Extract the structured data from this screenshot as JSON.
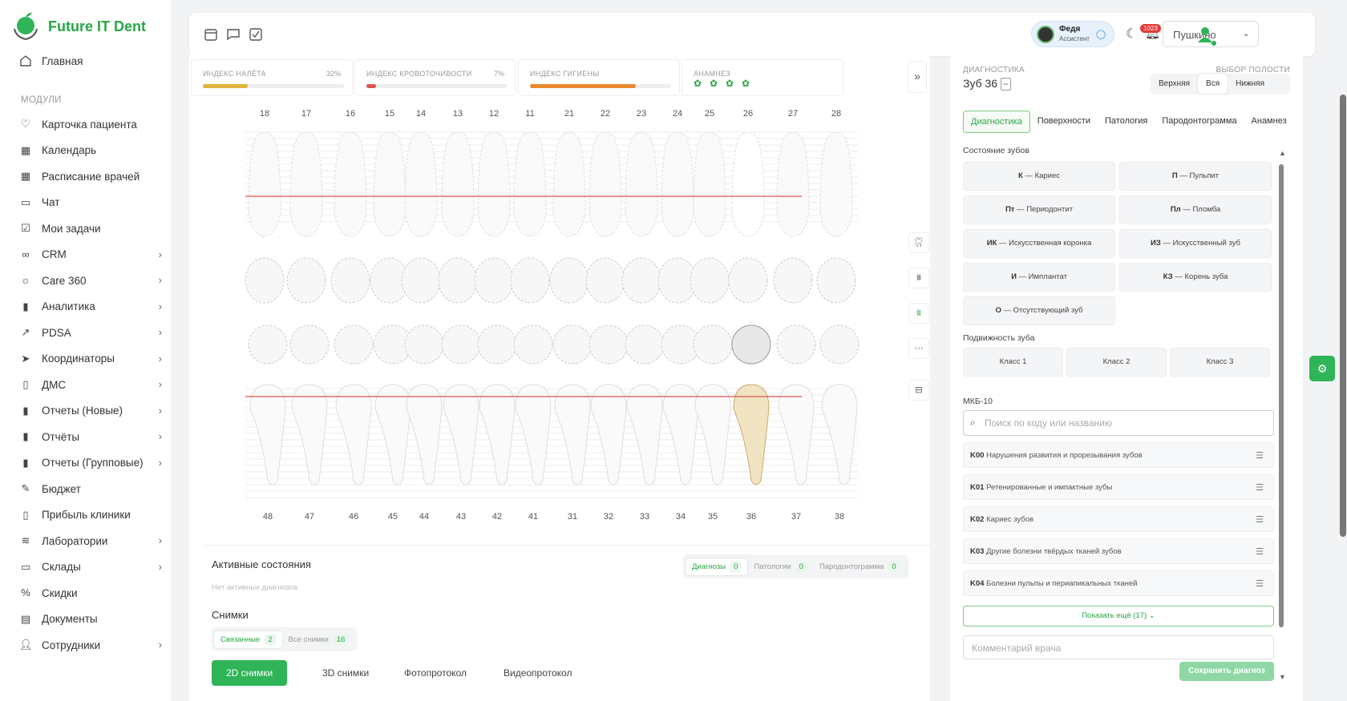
{
  "app": {
    "name": "Future IT Dent"
  },
  "sidebar": {
    "home": "Главная",
    "section": "МОДУЛИ",
    "items": [
      {
        "label": "Карточка пациента",
        "icon": "heart-icon",
        "chev": false
      },
      {
        "label": "Календарь",
        "icon": "calendar-icon",
        "chev": false
      },
      {
        "label": "Расписание врачей",
        "icon": "calendar-icon",
        "chev": false
      },
      {
        "label": "Чат",
        "icon": "chat-icon",
        "chev": false
      },
      {
        "label": "Мои задачи",
        "icon": "checkbox-icon",
        "chev": false
      },
      {
        "label": "CRM",
        "icon": "infinity-icon",
        "chev": true
      },
      {
        "label": "Care 360",
        "icon": "sun-icon",
        "chev": true
      },
      {
        "label": "Аналитика",
        "icon": "bar-chart-icon",
        "chev": true
      },
      {
        "label": "PDSA",
        "icon": "trend-icon",
        "chev": true
      },
      {
        "label": "Координаторы",
        "icon": "send-icon",
        "chev": true
      },
      {
        "label": "ДМС",
        "icon": "clipboard-icon",
        "chev": true
      },
      {
        "label": "Отчеты (Новые)",
        "icon": "bar-chart-icon",
        "chev": true
      },
      {
        "label": "Отчёты",
        "icon": "bar-chart-icon",
        "chev": true
      },
      {
        "label": "Отчеты (Групповые)",
        "icon": "bar-chart-icon",
        "chev": true
      },
      {
        "label": "Бюджет",
        "icon": "pen-icon",
        "chev": false
      },
      {
        "label": "Прибыль клиники",
        "icon": "clipboard-icon",
        "chev": false
      },
      {
        "label": "Лаборатории",
        "icon": "layers-icon",
        "chev": true
      },
      {
        "label": "Склады",
        "icon": "folder-icon",
        "chev": true
      },
      {
        "label": "Скидки",
        "icon": "percent-icon",
        "chev": false
      },
      {
        "label": "Документы",
        "icon": "document-icon",
        "chev": false
      },
      {
        "label": "Сотрудники",
        "icon": "users-icon",
        "chev": true
      }
    ]
  },
  "topbar": {
    "user_name": "Федя",
    "user_role": "Ассистент",
    "notifications": "1023",
    "clinic": "Пушкино"
  },
  "indices": [
    {
      "label": "ИНДЕКС НАЛЁТА",
      "pct": "32%",
      "value": 32,
      "color": "#e0b43c"
    },
    {
      "label": "ИНДЕКС КРОВОТОЧИВОСТИ",
      "pct": "7%",
      "value": 7,
      "color": "#d9534f"
    },
    {
      "label": "ИНДЕКС ГИГИЕНЫ",
      "pct": "",
      "value": 75,
      "color": "#e8892d"
    },
    {
      "label": "АНАМНЕЗ",
      "pct": "",
      "value": 0,
      "color": "#28a745"
    }
  ],
  "upper_numbers": [
    "18",
    "17",
    "16",
    "15",
    "14",
    "13",
    "12",
    "11",
    "21",
    "22",
    "23",
    "24",
    "25",
    "26",
    "27",
    "28"
  ],
  "lower_numbers": [
    "48",
    "47",
    "46",
    "45",
    "44",
    "43",
    "42",
    "41",
    "31",
    "32",
    "33",
    "34",
    "35",
    "36",
    "37",
    "38"
  ],
  "active": {
    "title": "Активные состояния",
    "empty": "Нет активных диагнозов",
    "tabs": [
      {
        "label": "Диагнозы",
        "count": "0"
      },
      {
        "label": "Патологии",
        "count": "0"
      },
      {
        "label": "Пародонтограмма",
        "count": "0"
      }
    ]
  },
  "snaps": {
    "title": "Снимки",
    "filters": [
      {
        "label": "Связанные",
        "count": "2"
      },
      {
        "label": "Все снимки",
        "count": "16"
      }
    ],
    "types": [
      "2D снимки",
      "3D снимки",
      "Фотопротокол",
      "Видеопротокол"
    ]
  },
  "right": {
    "diag_label": "ДИАГНОСТИКА",
    "tooth": "Зуб 36",
    "jaw_label": "ВЫБОР ПОЛОСТИ",
    "jaw": [
      "Верхняя",
      "Вся",
      "Нижняя"
    ],
    "tabs": [
      "Диагностика",
      "Поверхности",
      "Патология",
      "Пародонтограмма",
      "Анамнез"
    ],
    "state_title": "Состояние зубов",
    "states": [
      {
        "code": "К",
        "label": "Кариес"
      },
      {
        "code": "П",
        "label": "Пульпит"
      },
      {
        "code": "Пт",
        "label": "Периодонтит"
      },
      {
        "code": "Пл",
        "label": "Пломба"
      },
      {
        "code": "ИК",
        "label": "Искусственная коронка"
      },
      {
        "code": "ИЗ",
        "label": "Искусственный зуб"
      },
      {
        "code": "И",
        "label": "Имплантат"
      },
      {
        "code": "КЗ",
        "label": "Корень зуба"
      },
      {
        "code": "О",
        "label": "Отсутствующий зуб"
      }
    ],
    "mobility_title": "Подвижность зуба",
    "mobility": [
      "Класс 1",
      "Класс 2",
      "Класс 3"
    ],
    "mkb_title": "МКБ-10",
    "mkb_placeholder": "Поиск по коду или названию",
    "mkb": [
      {
        "code": "K00",
        "label": "Нарушения развития и прорезывания зубов"
      },
      {
        "code": "K01",
        "label": "Ретенированные и импактные зубы"
      },
      {
        "code": "K02",
        "label": "Кариес зубов"
      },
      {
        "code": "K03",
        "label": "Другие болезни твёрдых тканей зубов"
      },
      {
        "code": "K04",
        "label": "Болезни пульпы и периапикальных тканей"
      }
    ],
    "show_more": "Показать ещё (17)",
    "comment_placeholder": "Комментарий врача",
    "save": "Сохранить диагноз"
  }
}
